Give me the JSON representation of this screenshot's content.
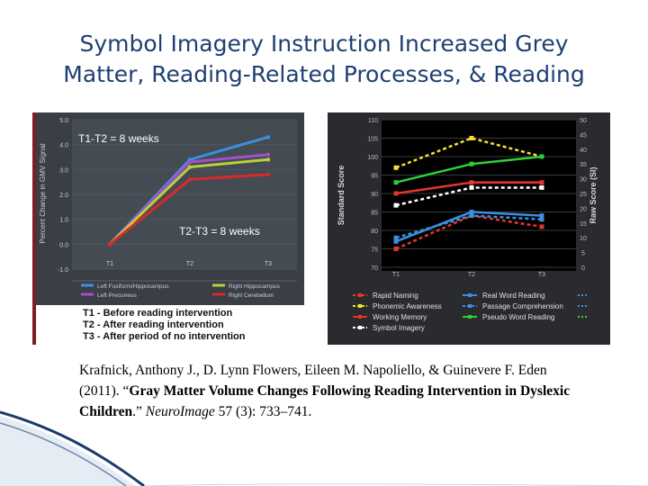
{
  "slide": {
    "title_line1": "Symbol Imagery Instruction Increased Grey",
    "title_line2": "Matter, Reading-Related Processes, & Reading"
  },
  "colors": {
    "title": "#1f3f73",
    "accent": "#1a3a6b"
  },
  "citation": {
    "authors": "Krafnick, Anthony J., D. Lynn Flowers, Eileen M. Napoliello, & Guinevere F. Eden (2011). “",
    "article_title": "Gray Matter Volume Changes Following Reading Intervention in Dyslexic Children",
    "after_title": ".” ",
    "journal": "NeuroImage",
    "volume_pages": " 57 (3): 733–741."
  },
  "chart_data": [
    {
      "type": "line",
      "ylabel": "Percent Change in GMV Signal",
      "categories": [
        "T1",
        "T2",
        "T3"
      ],
      "ylim": [
        -1.0,
        5.0
      ],
      "yticks": [
        "5.0",
        "4.0",
        "3.0",
        "2.0",
        "1.0",
        "0.0",
        "-1.0"
      ],
      "annotations": [
        "T1-T2 = 8 weeks",
        "T2-T3 = 8 weeks"
      ],
      "series": [
        {
          "name": "Left Fusiform/Hippocampus",
          "color": "#3b8fe0",
          "values": [
            0,
            3.4,
            4.3
          ]
        },
        {
          "name": "Left Precuneus",
          "color": "#a34fc9",
          "values": [
            0,
            3.3,
            3.6
          ]
        },
        {
          "name": "Right Hippocampus",
          "color": "#b9d23a",
          "values": [
            0,
            3.1,
            3.4
          ]
        },
        {
          "name": "Right Cerebellum",
          "color": "#d62b2b",
          "values": [
            0,
            2.6,
            2.8
          ]
        }
      ],
      "legend": "bottom",
      "key_lines": [
        "T1 - Before reading intervention",
        "T2 - After reading intervention",
        "T3 - After period of no intervention"
      ]
    },
    {
      "type": "line",
      "ylabel": "Standard Score",
      "y2label": "Raw Score (SI)",
      "categories": [
        "T1",
        "T2",
        "T3"
      ],
      "ylim": [
        70,
        110
      ],
      "y2lim": [
        0,
        50
      ],
      "yticks": [
        "110",
        "105",
        "100",
        "95",
        "90",
        "85",
        "80",
        "75",
        "70"
      ],
      "y2ticks": [
        "50",
        "45",
        "40",
        "35",
        "30",
        "25",
        "20",
        "15",
        "10",
        "5",
        "0"
      ],
      "series": [
        {
          "name": "Rapid Naming",
          "color": "#e8342c",
          "dash": true,
          "values": [
            75,
            84,
            81
          ]
        },
        {
          "name": "Phonemic Awareness",
          "color": "#f2e22c",
          "dash": true,
          "values": [
            97,
            105,
            100
          ]
        },
        {
          "name": "Working Memory",
          "color": "#e8342c",
          "dash": false,
          "values": [
            90,
            93,
            93
          ]
        },
        {
          "name": "Symbol Imagery",
          "color": "#ffffff",
          "dash": true,
          "axis": "right",
          "values": [
            21,
            27,
            27
          ]
        },
        {
          "name": "Real Word Reading",
          "color": "#3b8fe0",
          "dash": false,
          "values": [
            77,
            85,
            84
          ]
        },
        {
          "name": "Passage Comprehension",
          "color": "#3b8fe0",
          "dash": true,
          "values": [
            78,
            84,
            83
          ]
        },
        {
          "name": "Pseudo Word Reading",
          "color": "#2fcf3c",
          "dash": false,
          "values": [
            93,
            98,
            100
          ]
        }
      ],
      "legend": "bottom"
    }
  ]
}
